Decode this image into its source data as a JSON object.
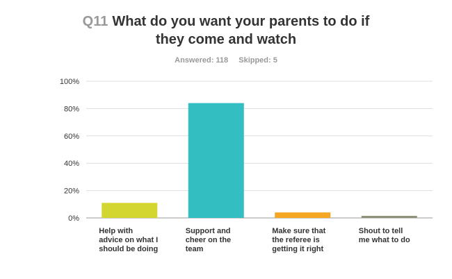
{
  "header": {
    "question_number": "Q11",
    "title_line1": "What do you want your parents to do if",
    "title_line2": "they come and watch",
    "answered": "Answered: 118",
    "skipped": "Skipped: 5"
  },
  "chart_data": {
    "type": "bar",
    "categories": [
      "Help with advice on what I should be doing",
      "Support and cheer on the team",
      "Make sure that the referee is getting it right",
      "Shout to tell me what to do"
    ],
    "category_lines": [
      [
        "Help with",
        "advice on what I",
        "should be doing"
      ],
      [
        "Support and",
        "cheer on the",
        "team"
      ],
      [
        "Make sure that",
        "the referee is",
        "getting it right"
      ],
      [
        "Shout to tell",
        "me what to do"
      ]
    ],
    "values": [
      11,
      84,
      4,
      1.5
    ],
    "colors": [
      "#d3d62e",
      "#33bec1",
      "#f5a623",
      "#8e9078"
    ],
    "ylim": [
      0,
      100
    ],
    "yticks": [
      "0%",
      "20%",
      "40%",
      "60%",
      "80%",
      "100%"
    ],
    "grid": true
  }
}
